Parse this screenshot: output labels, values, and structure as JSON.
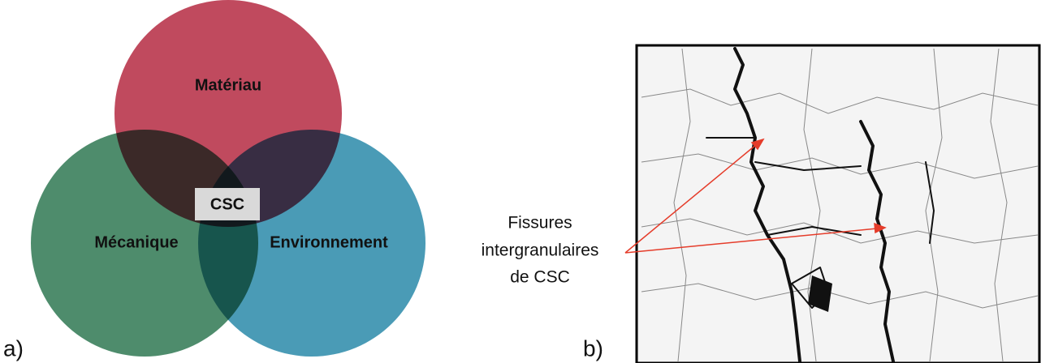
{
  "venn": {
    "circles": [
      {
        "label": "Matériau"
      },
      {
        "label": "Mécanique"
      },
      {
        "label": "Environnement"
      }
    ],
    "center_label": "CSC",
    "panel_label": "a)"
  },
  "micrograph": {
    "annotation": [
      "Fissures",
      "intergranulaires",
      "de CSC"
    ],
    "panel_label": "b)"
  }
}
